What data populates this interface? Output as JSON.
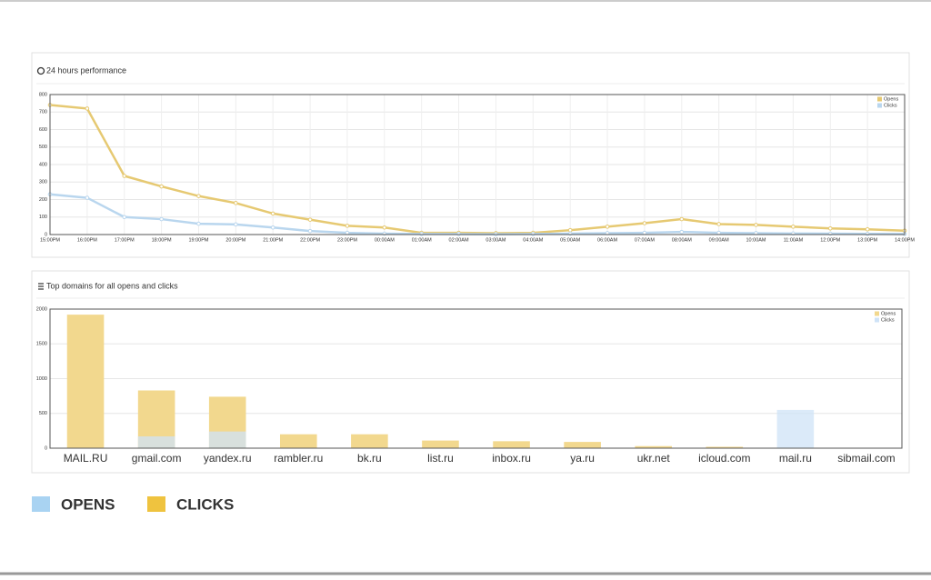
{
  "chart_data": [
    {
      "type": "line",
      "title": "24 hours performance",
      "categories": [
        "15:00PM",
        "16:00PM",
        "17:00PM",
        "18:00PM",
        "19:00PM",
        "20:00PM",
        "21:00PM",
        "22:00PM",
        "23:00PM",
        "00:00AM",
        "01:00AM",
        "02:00AM",
        "03:00AM",
        "04:00AM",
        "05:00AM",
        "06:00AM",
        "07:00AM",
        "08:00AM",
        "09:00AM",
        "10:00AM",
        "11:00AM",
        "12:00PM",
        "13:00PM",
        "14:00PM"
      ],
      "series": [
        {
          "name": "Opens",
          "color": "#e6c972",
          "values": [
            740,
            720,
            335,
            275,
            220,
            180,
            120,
            85,
            50,
            40,
            10,
            10,
            8,
            10,
            25,
            45,
            65,
            88,
            60,
            55,
            45,
            35,
            30,
            22
          ]
        },
        {
          "name": "Clicks",
          "color": "#b9d6ee",
          "values": [
            230,
            210,
            100,
            88,
            62,
            58,
            40,
            20,
            10,
            5,
            3,
            3,
            2,
            3,
            5,
            8,
            10,
            15,
            10,
            8,
            6,
            5,
            4,
            3
          ]
        }
      ],
      "ylim": [
        0,
        800
      ],
      "yticks": [
        0,
        100,
        200,
        300,
        400,
        500,
        600,
        700,
        800
      ],
      "grid": true,
      "legend": "top-right"
    },
    {
      "type": "bar",
      "title": "Top domains for all opens and clicks",
      "categories": [
        "MAIL.RU",
        "gmail.com",
        "yandex.ru",
        "rambler.ru",
        "bk.ru",
        "list.ru",
        "inbox.ru",
        "ya.ru",
        "ukr.net",
        "icloud.com",
        "mail.ru",
        "sibmail.com"
      ],
      "series": [
        {
          "name": "Opens",
          "color": "#f2d88e",
          "values": [
            1920,
            830,
            740,
            200,
            200,
            110,
            100,
            90,
            30,
            20,
            0,
            0
          ]
        },
        {
          "name": "Clicks",
          "color": "#cfe3f7",
          "values": [
            0,
            170,
            240,
            0,
            0,
            0,
            0,
            0,
            0,
            0,
            550,
            0
          ]
        }
      ],
      "ylim": [
        0,
        2000
      ],
      "yticks": [
        0,
        500,
        1000,
        1500,
        2000
      ],
      "grid": true,
      "legend": "top-right"
    }
  ],
  "legend": {
    "items": [
      {
        "name": "OPENS",
        "color": "#a9d3f2"
      },
      {
        "name": "CLICKS",
        "color": "#efc33f"
      }
    ]
  }
}
